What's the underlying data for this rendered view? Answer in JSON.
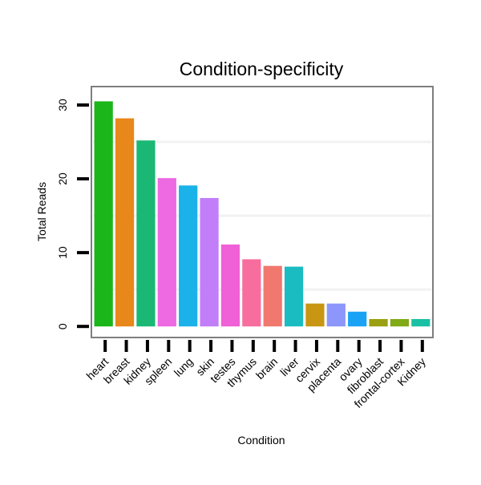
{
  "chart_data": {
    "type": "bar",
    "title": "Condition-specificity",
    "xlabel": "Condition",
    "ylabel": "Total Reads",
    "ylim": [
      -1.5,
      32.5
    ],
    "yticks": [
      0,
      10,
      20,
      30
    ],
    "ytick_labels": [
      "0",
      "10",
      "20",
      "30"
    ],
    "grid": true,
    "legend": "none",
    "categories": [
      "heart",
      "breast",
      "kidney",
      "spleen",
      "lung",
      "skin",
      "testes",
      "thymus",
      "brain",
      "liver",
      "cervix",
      "placenta",
      "ovary",
      "fibroblast",
      "frontal-cortex",
      "Kidney"
    ],
    "values": [
      30.5,
      28.2,
      25.2,
      20.1,
      19.1,
      17.4,
      11.1,
      9.1,
      8.2,
      8.1,
      3.1,
      3.1,
      2.0,
      1.0,
      1.0,
      1.0
    ],
    "colors": [
      "#1ab61a",
      "#e8871a",
      "#1ab874",
      "#ed6ae2",
      "#1ab2e8",
      "#c27ef8",
      "#f060d6",
      "#f76e9e",
      "#f0786e",
      "#1abcc2",
      "#c89612",
      "#8c96fb",
      "#1aa3f5",
      "#9ba012",
      "#80aa16",
      "#1ac0a4"
    ]
  }
}
